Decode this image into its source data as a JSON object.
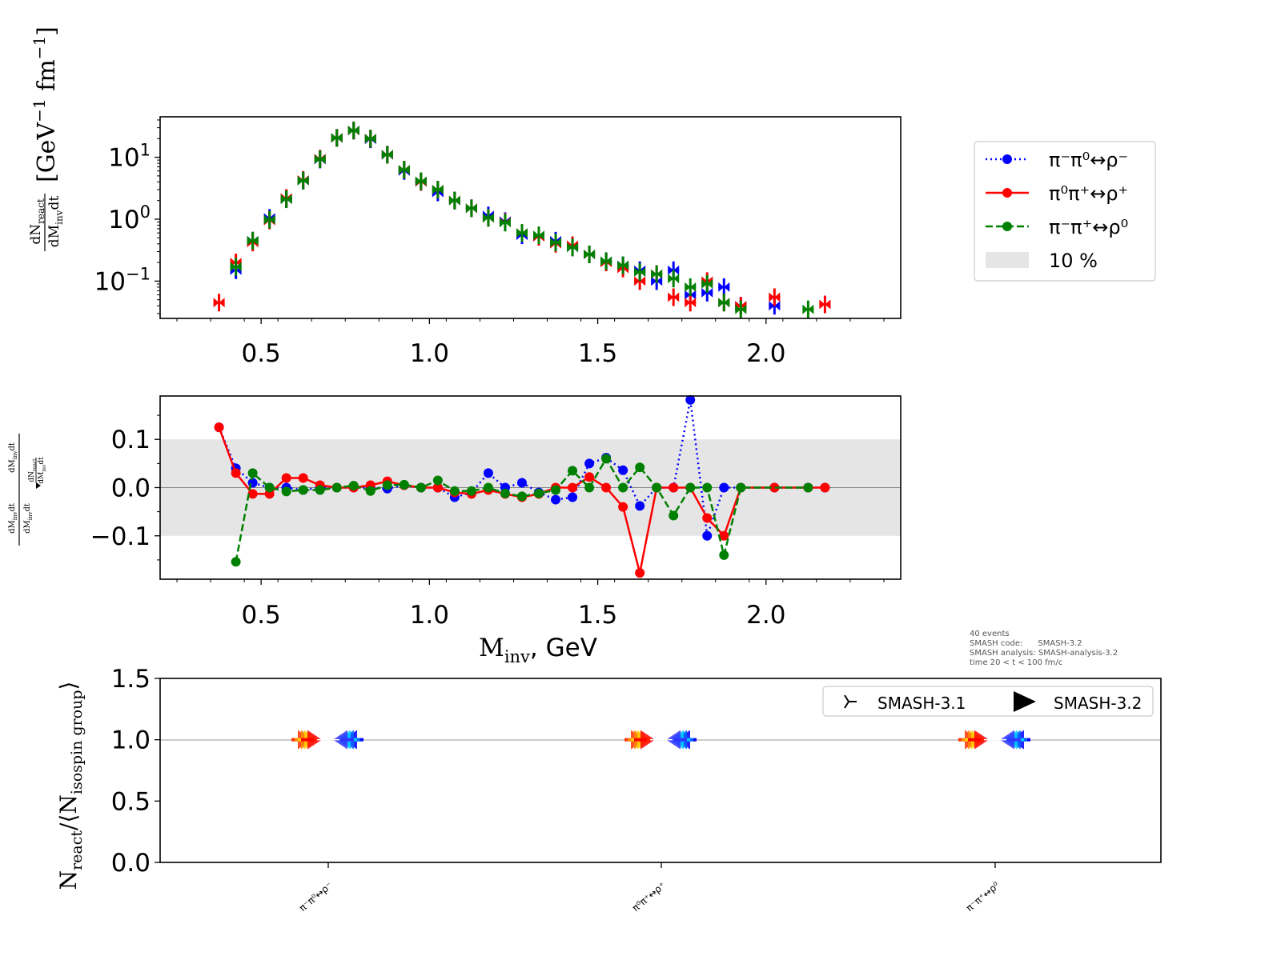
{
  "colors": {
    "blue": "#0000ff",
    "red": "#ff0000",
    "green": "#008000",
    "band": "#e5e5e5"
  },
  "chart_data": [
    {
      "type": "scatter",
      "panel": "spectrum",
      "yscale": "log",
      "xlim": [
        0.2,
        2.4
      ],
      "ylim": [
        0.025,
        45
      ],
      "ylabel": "dN_react/dM_inv dt [GeV^-1 fm^-1]",
      "yticks": [
        "10^-1",
        "10^0",
        "10^1"
      ],
      "xticks": [
        "0.5",
        "1.0",
        "1.5",
        "2.0"
      ],
      "legend": {
        "placement": "right",
        "entries": [
          "π⁻π⁰↔ρ⁻",
          "π⁰π⁺↔ρ⁺",
          "π⁻π⁺↔ρ⁰",
          "10 %"
        ]
      },
      "series": [
        {
          "name": "π⁻π⁰↔ρ⁻",
          "color": "blue",
          "x": [
            0.425,
            0.475,
            0.525,
            0.575,
            0.625,
            0.675,
            0.725,
            0.775,
            0.825,
            0.875,
            0.925,
            0.975,
            1.025,
            1.075,
            1.125,
            1.175,
            1.225,
            1.275,
            1.325,
            1.375,
            1.425,
            1.475,
            1.525,
            1.575,
            1.625,
            1.675,
            1.725,
            1.775,
            1.825,
            1.875,
            1.925,
            2.025
          ],
          "y": [
            0.15,
            0.45,
            1.05,
            2.1,
            4.2,
            9.2,
            20.5,
            27,
            19.5,
            11,
            6.0,
            4.0,
            2.7,
            2.0,
            1.5,
            1.15,
            0.93,
            0.55,
            0.52,
            0.45,
            0.35,
            0.27,
            0.21,
            0.18,
            0.15,
            0.1,
            0.15,
            0.06,
            0.065,
            0.08,
            0.04,
            0.04
          ]
        },
        {
          "name": "π⁰π⁺↔ρ⁺",
          "color": "red",
          "x": [
            0.375,
            0.425,
            0.475,
            0.525,
            0.575,
            0.625,
            0.675,
            0.725,
            0.775,
            0.825,
            0.875,
            0.925,
            0.975,
            1.025,
            1.075,
            1.125,
            1.175,
            1.225,
            1.275,
            1.325,
            1.375,
            1.425,
            1.475,
            1.525,
            1.575,
            1.625,
            1.675,
            1.725,
            1.775,
            1.825,
            1.875,
            1.925,
            2.025,
            2.175
          ],
          "y": [
            0.045,
            0.2,
            0.42,
            0.95,
            2.2,
            4.3,
            9.5,
            20.5,
            27,
            20,
            11,
            6.3,
            4.0,
            3.0,
            2.0,
            1.5,
            1.05,
            0.9,
            0.6,
            0.52,
            0.4,
            0.38,
            0.27,
            0.2,
            0.16,
            0.1,
            0.13,
            0.055,
            0.045,
            0.1,
            0.045,
            0.04,
            0.055,
            0.042
          ]
        },
        {
          "name": "π⁻π⁺↔ρ⁰",
          "color": "green",
          "x": [
            0.425,
            0.475,
            0.525,
            0.575,
            0.625,
            0.675,
            0.725,
            0.775,
            0.825,
            0.875,
            0.925,
            0.975,
            1.025,
            1.075,
            1.125,
            1.175,
            1.225,
            1.275,
            1.325,
            1.375,
            1.425,
            1.475,
            1.525,
            1.575,
            1.625,
            1.675,
            1.725,
            1.775,
            1.825,
            1.875,
            1.925,
            2.125
          ],
          "y": [
            0.17,
            0.45,
            0.98,
            2.1,
            4.2,
            9.3,
            20.5,
            27,
            20,
            11,
            6.3,
            4.1,
            3.0,
            2.0,
            1.5,
            1.05,
            0.88,
            0.6,
            0.55,
            0.42,
            0.35,
            0.27,
            0.21,
            0.18,
            0.14,
            0.13,
            0.11,
            0.08,
            0.09,
            0.045,
            0.035,
            0.035
          ]
        }
      ]
    },
    {
      "type": "line",
      "panel": "deviation",
      "xlim": [
        0.2,
        2.4
      ],
      "ylim": [
        -0.19,
        0.19
      ],
      "yticks": [
        "0.1",
        "0.0",
        "−0.1"
      ],
      "xticks": [
        "0.5",
        "1.0",
        "1.5",
        "2.0"
      ],
      "xlabel": "M_inv, GeV",
      "band": [
        -0.1,
        0.1
      ],
      "series": [
        {
          "name": "π⁻π⁰↔ρ⁻",
          "color": "blue",
          "style": "dotted",
          "x": [
            0.375,
            0.425,
            0.475,
            0.525,
            0.575,
            0.625,
            0.675,
            0.725,
            0.775,
            0.825,
            0.875,
            0.925,
            0.975,
            1.025,
            1.075,
            1.125,
            1.175,
            1.225,
            1.275,
            1.325,
            1.375,
            1.425,
            1.475,
            1.525,
            1.575,
            1.625,
            1.675,
            1.725,
            1.775,
            1.825,
            1.875,
            1.925,
            2.025,
            2.125,
            2.175
          ],
          "y": [
            0.125,
            0.04,
            0.01,
            0.0,
            0.0,
            -0.005,
            0.0,
            0.0,
            0.0,
            0.0,
            -0.002,
            0.005,
            0.0,
            0.0,
            -0.02,
            -0.01,
            0.03,
            0.0,
            0.01,
            -0.01,
            -0.025,
            -0.02,
            0.05,
            0.062,
            0.036,
            -0.038,
            0.0,
            0.0,
            0.182,
            -0.1,
            0.0,
            0.0,
            0.0,
            0.0,
            0.0
          ]
        },
        {
          "name": "π⁰π⁺↔ρ⁺",
          "color": "red",
          "style": "solid",
          "x": [
            0.375,
            0.425,
            0.475,
            0.525,
            0.575,
            0.625,
            0.675,
            0.725,
            0.775,
            0.825,
            0.875,
            0.925,
            0.975,
            1.025,
            1.075,
            1.125,
            1.175,
            1.225,
            1.275,
            1.325,
            1.375,
            1.425,
            1.475,
            1.525,
            1.575,
            1.625,
            1.675,
            1.725,
            1.775,
            1.825,
            1.875,
            1.925,
            2.025,
            2.125,
            2.175
          ],
          "y": [
            0.125,
            0.03,
            -0.013,
            -0.013,
            0.02,
            0.02,
            0.005,
            0.0,
            0.0,
            0.005,
            0.013,
            0.005,
            0.0,
            0.0,
            -0.01,
            -0.013,
            -0.005,
            -0.013,
            -0.02,
            -0.013,
            0.0,
            0.0,
            0.022,
            0.0,
            -0.04,
            -0.177,
            0.0,
            0.0,
            0.0,
            -0.063,
            -0.1,
            0.0,
            0.0,
            0.0,
            0.0
          ]
        },
        {
          "name": "π⁻π⁺↔ρ⁰",
          "color": "green",
          "style": "dashed",
          "x": [
            0.425,
            0.475,
            0.525,
            0.575,
            0.625,
            0.675,
            0.725,
            0.775,
            0.825,
            0.875,
            0.925,
            0.975,
            1.025,
            1.075,
            1.125,
            1.175,
            1.225,
            1.275,
            1.325,
            1.375,
            1.425,
            1.475,
            1.525,
            1.575,
            1.625,
            1.675,
            1.725,
            1.775,
            1.825,
            1.875,
            1.925,
            2.125
          ],
          "y": [
            -0.154,
            0.03,
            0.0,
            -0.008,
            -0.005,
            -0.005,
            0.0,
            0.004,
            -0.007,
            0.005,
            0.006,
            0.0,
            0.015,
            -0.007,
            -0.007,
            0.0,
            -0.012,
            -0.018,
            -0.012,
            -0.005,
            0.035,
            0.0,
            0.06,
            0.0,
            0.042,
            0.0,
            -0.058,
            0.0,
            0.0,
            -0.14,
            0.0,
            0.0
          ]
        }
      ]
    },
    {
      "type": "scatter",
      "panel": "ratios",
      "ylim": [
        0.0,
        1.5
      ],
      "yticks": [
        "0.0",
        "0.5",
        "1.0",
        "1.5"
      ],
      "ylabel": "N_react/⟨N_isospin group⟩",
      "categories": [
        "π⁻π⁰↔ρ⁻",
        "π⁰π⁺↔ρ⁺",
        "π⁻π⁺↔ρ⁰"
      ],
      "legend": {
        "placement": "top-right",
        "entries": [
          "SMASH-3.1",
          "SMASH-3.2"
        ]
      },
      "series": [
        {
          "name": "SMASH-3.1",
          "values": [
            1.0,
            1.0,
            1.0
          ]
        },
        {
          "name": "SMASH-3.2",
          "values": [
            1.0,
            1.0,
            1.0
          ]
        }
      ]
    }
  ],
  "annotation": {
    "lines": [
      "40 events",
      "SMASH code:      SMASH-3.2",
      "SMASH analysis: SMASH-analysis-3.2",
      "time 20 < t < 100 fm/c"
    ]
  },
  "labels": {
    "p1_ylabel_num": "dN",
    "p1_ylabel_num_sub": "react",
    "p1_ylabel_den": "dM",
    "p1_ylabel_den_sub": "inv",
    "p1_ylabel_den_tail": "dt",
    "p1_ylabel_units": "[GeV",
    "p1_ylabel_units2": "fm",
    "p1_ylabel_exp": "−1",
    "p1_ylabel_close": "]",
    "p2_xlabel_main": "M",
    "p2_xlabel_sub": "inv",
    "p2_xlabel_tail": ", GeV",
    "p3_ylabel_main": "N",
    "p3_ylabel_sub": "react",
    "p3_ylabel_mid": "/⟨N",
    "p3_ylabel_sub2": "isospin group",
    "p3_ylabel_close": "⟩"
  }
}
